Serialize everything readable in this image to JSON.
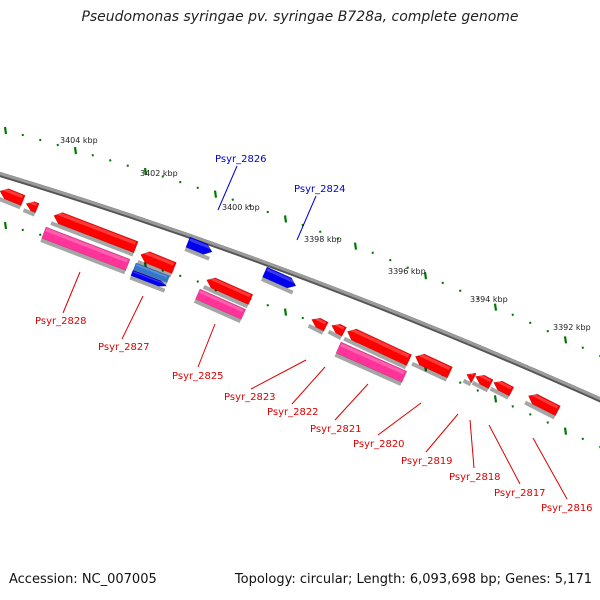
{
  "title": "Pseudomonas syringae pv. syringae B728a, complete genome",
  "footer": {
    "accession": "Accession: NC_007005",
    "topology": "Topology: circular; Length: 6,093,698 bp; Genes: 5,171"
  },
  "colors": {
    "forward_gene": "#0000ee",
    "reverse_gene": "#ff0000",
    "reverse_gene_pink": "#ff3399",
    "forward_gene_light": "#3377cc",
    "backbone": "#808080",
    "tick": "#007700",
    "forward_label": "#0000cc",
    "reverse_label": "#dd0000"
  },
  "scale_labels": [
    "3404 kbp",
    "3402 kbp",
    "3400 kbp",
    "3398 kbp",
    "3396 kbp",
    "3394 kbp",
    "3392 kbp"
  ],
  "genes": [
    {
      "label": "Psyr_2828",
      "strand": "reverse"
    },
    {
      "label": "Psyr_2827",
      "strand": "reverse"
    },
    {
      "label": "Psyr_2826",
      "strand": "forward"
    },
    {
      "label": "Psyr_2825",
      "strand": "reverse"
    },
    {
      "label": "Psyr_2824",
      "strand": "forward"
    },
    {
      "label": "Psyr_2823",
      "strand": "reverse"
    },
    {
      "label": "Psyr_2822",
      "strand": "reverse"
    },
    {
      "label": "Psyr_2821",
      "strand": "reverse"
    },
    {
      "label": "Psyr_2820",
      "strand": "reverse"
    },
    {
      "label": "Psyr_2819",
      "strand": "reverse"
    },
    {
      "label": "Psyr_2818",
      "strand": "reverse"
    },
    {
      "label": "Psyr_2817",
      "strand": "reverse"
    },
    {
      "label": "Psyr_2816",
      "strand": "reverse"
    }
  ]
}
